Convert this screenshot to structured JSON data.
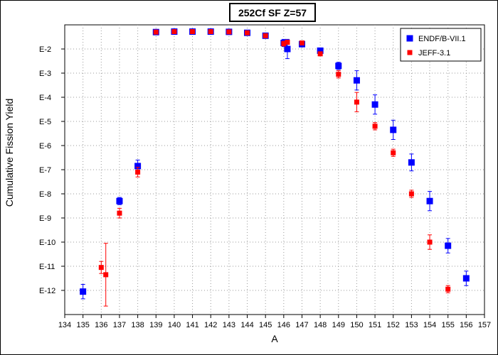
{
  "chart_data": {
    "type": "scatter",
    "title": "252Cf SF Z=57",
    "xlabel": "A",
    "ylabel": "Cumulative Fission Yield",
    "xlim": [
      134,
      157
    ],
    "ylim_log10": [
      -13,
      -1
    ],
    "y_scale": "log",
    "x_ticks": [
      "134",
      "135",
      "136",
      "137",
      "138",
      "139",
      "140",
      "141",
      "142",
      "143",
      "144",
      "145",
      "146",
      "147",
      "148",
      "149",
      "150",
      "151",
      "152",
      "153",
      "154",
      "155",
      "156",
      "157"
    ],
    "y_ticks": [
      {
        "label": "E-2",
        "exp": -2
      },
      {
        "label": "E-3",
        "exp": -3
      },
      {
        "label": "E-4",
        "exp": -4
      },
      {
        "label": "E-5",
        "exp": -5
      },
      {
        "label": "E-6",
        "exp": -6
      },
      {
        "label": "E-7",
        "exp": -7
      },
      {
        "label": "E-8",
        "exp": -8
      },
      {
        "label": "E-9",
        "exp": -9
      },
      {
        "label": "E-10",
        "exp": -10
      },
      {
        "label": "E-11",
        "exp": -11
      },
      {
        "label": "E-12",
        "exp": -12
      }
    ],
    "grid": true,
    "legend_position": "top-right",
    "series": [
      {
        "name": "ENDF/B-VII.1",
        "color": "#0000ff",
        "marker": "square-large",
        "points": [
          {
            "x": 135,
            "log10_y": -12.05,
            "err": 0.3
          },
          {
            "x": 137,
            "log10_y": -8.3,
            "err": 0.15
          },
          {
            "x": 138,
            "log10_y": -6.85,
            "err": 0.25
          },
          {
            "x": 139,
            "log10_y": -1.3,
            "err": 0.0
          },
          {
            "x": 140,
            "log10_y": -1.28,
            "err": 0.0
          },
          {
            "x": 141,
            "log10_y": -1.28,
            "err": 0.0
          },
          {
            "x": 142,
            "log10_y": -1.28,
            "err": 0.0
          },
          {
            "x": 143,
            "log10_y": -1.29,
            "err": 0.0
          },
          {
            "x": 144,
            "log10_y": -1.33,
            "err": 0.0
          },
          {
            "x": 145,
            "log10_y": -1.45,
            "err": 0.0
          },
          {
            "x": 146,
            "log10_y": -1.75,
            "err": 0.15
          },
          {
            "x": 146.2,
            "log10_y": -2.0,
            "err": 0.4
          },
          {
            "x": 147,
            "log10_y": -1.8,
            "err": 0.1
          },
          {
            "x": 148,
            "log10_y": -2.07,
            "err": 0.08
          },
          {
            "x": 149,
            "log10_y": -2.7,
            "err": 0.15
          },
          {
            "x": 150,
            "log10_y": -3.3,
            "err": 0.4
          },
          {
            "x": 151,
            "log10_y": -4.3,
            "err": 0.4
          },
          {
            "x": 152,
            "log10_y": -5.35,
            "err": 0.4
          },
          {
            "x": 153,
            "log10_y": -6.7,
            "err": 0.35
          },
          {
            "x": 154,
            "log10_y": -8.3,
            "err": 0.4
          },
          {
            "x": 155,
            "log10_y": -10.15,
            "err": 0.3
          },
          {
            "x": 156,
            "log10_y": -11.5,
            "err": 0.3
          }
        ]
      },
      {
        "name": "JEFF-3.1",
        "color": "#ff0000",
        "marker": "square-small",
        "points": [
          {
            "x": 136,
            "log10_y": -11.05,
            "err": 0.25
          },
          {
            "x": 136.25,
            "log10_y": -11.35,
            "err": 1.3
          },
          {
            "x": 137,
            "log10_y": -8.8,
            "err": 0.2
          },
          {
            "x": 138,
            "log10_y": -7.1,
            "err": 0.2
          },
          {
            "x": 139,
            "log10_y": -1.3,
            "err": 0.0
          },
          {
            "x": 140,
            "log10_y": -1.28,
            "err": 0.0
          },
          {
            "x": 141,
            "log10_y": -1.28,
            "err": 0.0
          },
          {
            "x": 142,
            "log10_y": -1.28,
            "err": 0.0
          },
          {
            "x": 143,
            "log10_y": -1.29,
            "err": 0.0
          },
          {
            "x": 144,
            "log10_y": -1.33,
            "err": 0.0
          },
          {
            "x": 145,
            "log10_y": -1.45,
            "err": 0.0
          },
          {
            "x": 146,
            "log10_y": -1.78,
            "err": 0.1
          },
          {
            "x": 146.2,
            "log10_y": -1.72,
            "err": 0.08
          },
          {
            "x": 147,
            "log10_y": -1.75,
            "err": 0.08
          },
          {
            "x": 148,
            "log10_y": -2.2,
            "err": 0.08
          },
          {
            "x": 149,
            "log10_y": -3.05,
            "err": 0.15
          },
          {
            "x": 150,
            "log10_y": -4.2,
            "err": 0.4
          },
          {
            "x": 151,
            "log10_y": -5.2,
            "err": 0.15
          },
          {
            "x": 152,
            "log10_y": -6.3,
            "err": 0.15
          },
          {
            "x": 153,
            "log10_y": -8.0,
            "err": 0.15
          },
          {
            "x": 154,
            "log10_y": -10.0,
            "err": 0.3
          },
          {
            "x": 155,
            "log10_y": -11.95,
            "err": 0.15
          }
        ]
      }
    ]
  }
}
